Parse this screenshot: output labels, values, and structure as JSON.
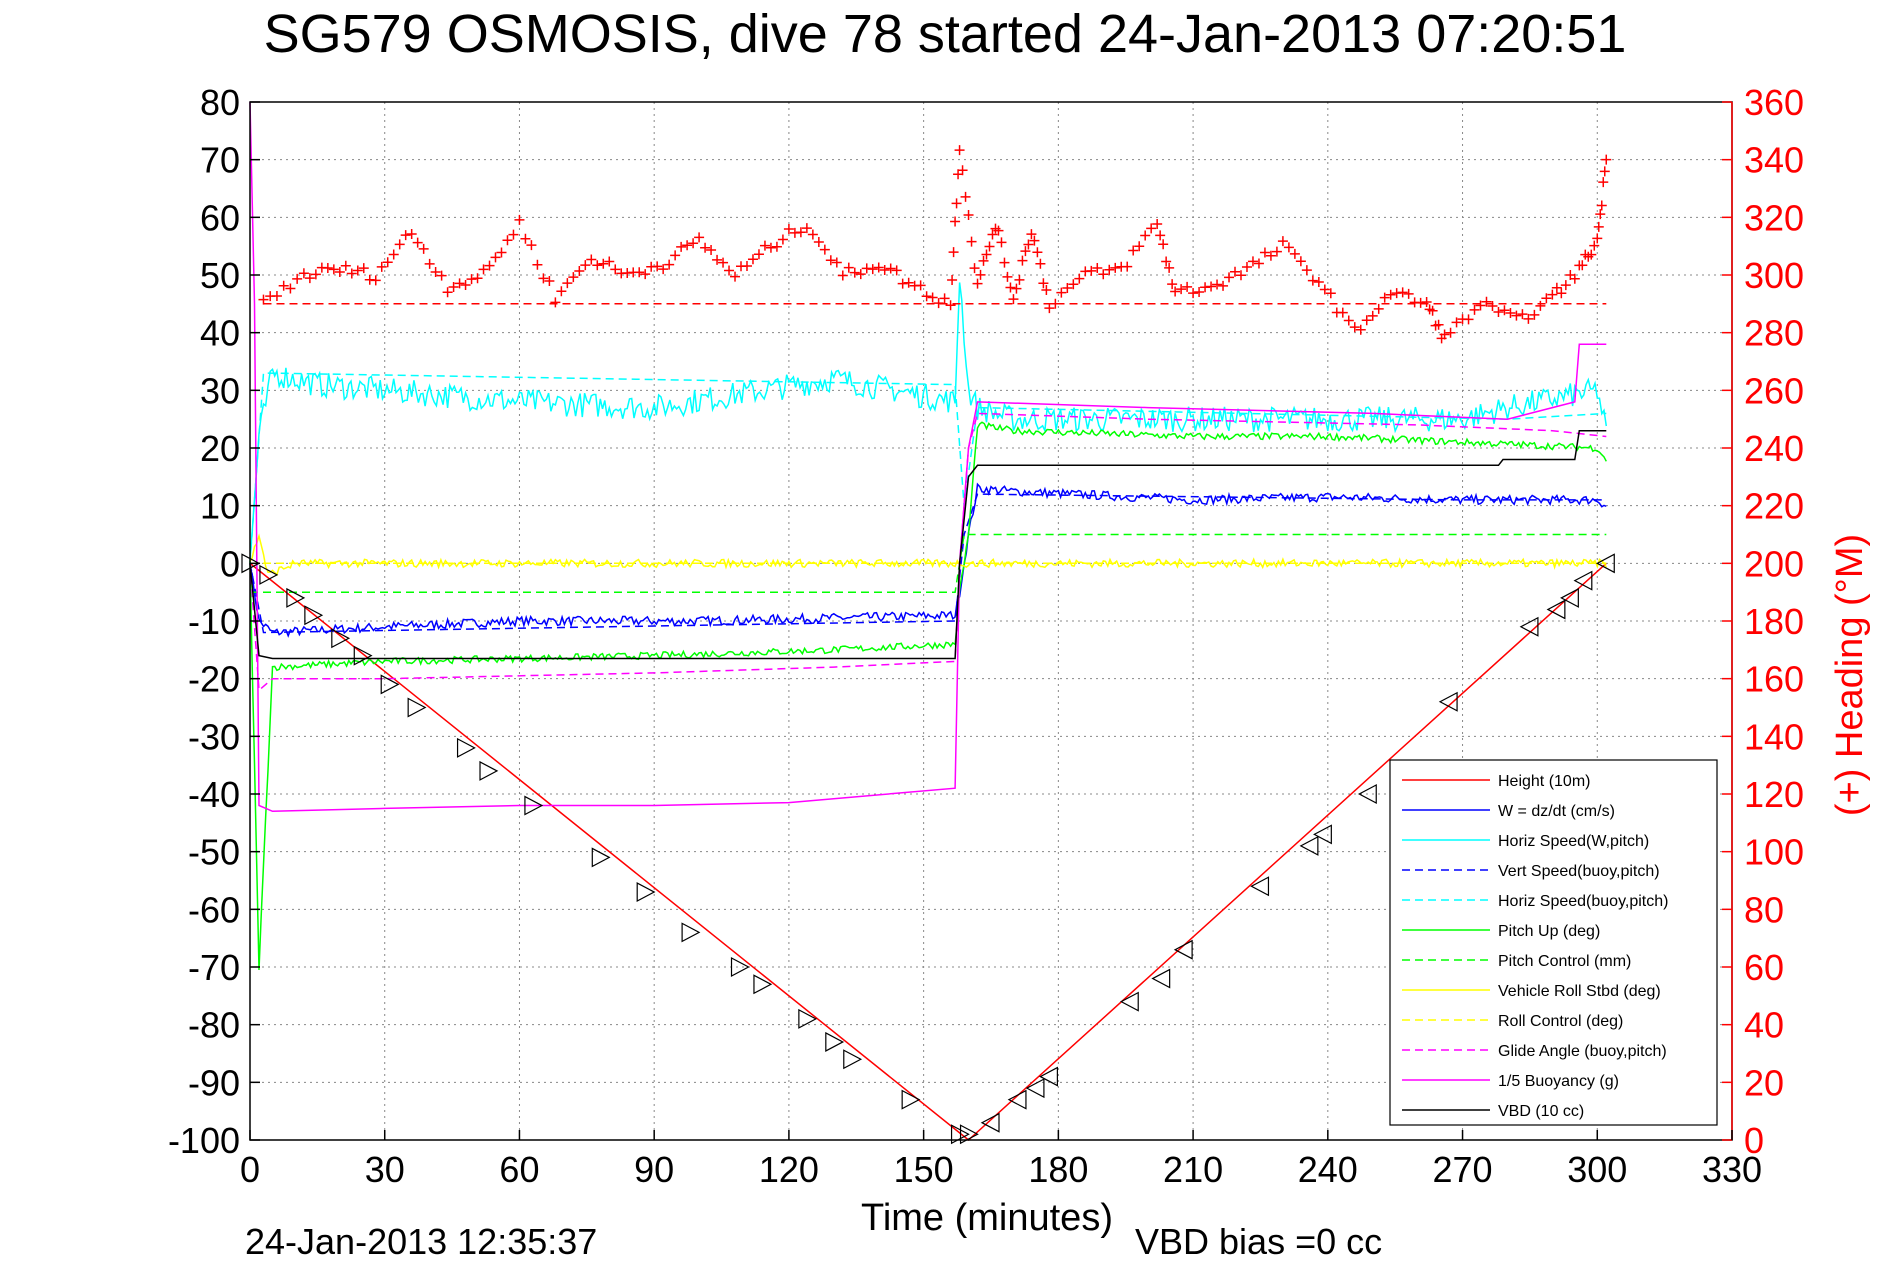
{
  "chart_data": {
    "type": "line",
    "title": "SG579 OSMOSIS, dive 78 started 24-Jan-2013 07:20:51",
    "xlabel": "Time (minutes)",
    "ylabel_right": "(+) Heading (°M)",
    "footer_left": "24-Jan-2013 12:35:37",
    "footer_right": "VBD bias =0 cc",
    "xlim": [
      0,
      330
    ],
    "ylim": [
      -100,
      80
    ],
    "ylim_right": [
      0,
      360
    ],
    "xticks": [
      0,
      30,
      60,
      90,
      120,
      150,
      180,
      210,
      240,
      270,
      300,
      330
    ],
    "yticks": [
      -100,
      -90,
      -80,
      -70,
      -60,
      -50,
      -40,
      -30,
      -20,
      -10,
      0,
      10,
      20,
      30,
      40,
      50,
      60,
      70,
      80
    ],
    "yticks_right": [
      0,
      20,
      40,
      60,
      80,
      100,
      120,
      140,
      160,
      180,
      200,
      220,
      240,
      260,
      280,
      300,
      320,
      340,
      360
    ],
    "grid": true,
    "legend_position": "bottom-right",
    "colors": {
      "red": "#ff0000",
      "blue": "#0000ff",
      "cyan": "#00ffff",
      "green": "#00ff00",
      "yellow": "#ffff00",
      "magenta": "#ff00ff",
      "black": "#000000"
    },
    "legend": [
      {
        "label": "Height (10m)",
        "color": "#ff0000",
        "dash": false
      },
      {
        "label": "W = dz/dt (cm/s)",
        "color": "#0000ff",
        "dash": false
      },
      {
        "label": "Horiz Speed(W,pitch)",
        "color": "#00ffff",
        "dash": false
      },
      {
        "label": "Vert Speed(buoy,pitch)",
        "color": "#0000ff",
        "dash": true
      },
      {
        "label": "Horiz Speed(buoy,pitch)",
        "color": "#00ffff",
        "dash": true
      },
      {
        "label": "Pitch Up (deg)",
        "color": "#00ff00",
        "dash": false
      },
      {
        "label": "Pitch Control (mm)",
        "color": "#00ff00",
        "dash": true
      },
      {
        "label": "Vehicle Roll Stbd (deg)",
        "color": "#ffff00",
        "dash": false
      },
      {
        "label": "Roll Control (deg)",
        "color": "#ffff00",
        "dash": true
      },
      {
        "label": "Glide Angle (buoy,pitch)",
        "color": "#ff00ff",
        "dash": true
      },
      {
        "label": "1/5 Buoyancy (g)",
        "color": "#ff00ff",
        "dash": false
      },
      {
        "label": "VBD (10 cc)",
        "color": "#000000",
        "dash": false
      }
    ],
    "series": [
      {
        "name": "Height (10m)",
        "color": "#ff0000",
        "dash": false,
        "x": [
          0,
          160,
          302
        ],
        "y": [
          0,
          -100,
          0
        ]
      },
      {
        "name": "W = dz/dt (cm/s)",
        "color": "#0000ff",
        "dash": false,
        "noise": 0.8,
        "x": [
          0,
          2,
          5,
          30,
          60,
          100,
          130,
          157,
          158,
          160,
          162,
          170,
          210,
          240,
          270,
          300,
          302
        ],
        "y": [
          0,
          -10,
          -12,
          -11,
          -10,
          -10,
          -9.5,
          -9,
          -5,
          5,
          13,
          12.5,
          11,
          11.5,
          11,
          11,
          10
        ]
      },
      {
        "name": "Horiz Speed(W,pitch)",
        "color": "#00ffff",
        "dash": false,
        "noise": 2.2,
        "x": [
          0,
          2,
          5,
          15,
          30,
          60,
          90,
          130,
          157,
          158,
          160,
          162,
          170,
          210,
          240,
          270,
          280,
          300,
          302
        ],
        "y": [
          0,
          22,
          33,
          31,
          30,
          28,
          27,
          32,
          28,
          50,
          30,
          27,
          25,
          25,
          25,
          25,
          27,
          30,
          23
        ]
      },
      {
        "name": "Vert Speed(buoy,pitch)",
        "color": "#0000ff",
        "dash": true,
        "x": [
          0,
          3,
          157,
          159,
          162,
          270,
          302
        ],
        "y": [
          0,
          -12,
          -10,
          5,
          12,
          11,
          11
        ]
      },
      {
        "name": "Horiz Speed(buoy,pitch)",
        "color": "#00ffff",
        "dash": true,
        "x": [
          0,
          3,
          157,
          159,
          162,
          280,
          302
        ],
        "y": [
          0,
          33,
          31,
          10,
          27,
          25,
          26
        ]
      },
      {
        "name": "Pitch Up (deg)",
        "color": "#00ff00",
        "dash": false,
        "noise": 0.6,
        "x": [
          0,
          2,
          5,
          30,
          90,
          130,
          157,
          158,
          160,
          162,
          170,
          210,
          240,
          270,
          300,
          302
        ],
        "y": [
          0,
          -70,
          -18,
          -17,
          -16,
          -15,
          -14,
          -5,
          5,
          24,
          23,
          22,
          22,
          21,
          20,
          18
        ]
      },
      {
        "name": "Pitch Control (mm)",
        "color": "#00ff00",
        "dash": true,
        "x": [
          0,
          3,
          157,
          159,
          302
        ],
        "y": [
          -5,
          -5,
          -5,
          5,
          5
        ]
      },
      {
        "name": "Vehicle Roll Stbd (deg)",
        "color": "#ffff00",
        "dash": false,
        "noise": 0.7,
        "x": [
          0,
          2,
          4,
          10,
          30,
          60,
          90,
          120,
          157,
          158,
          160,
          162,
          170,
          210,
          240,
          270,
          290,
          300,
          302
        ],
        "y": [
          0,
          5,
          -2,
          0,
          0,
          0,
          0,
          0,
          0,
          0,
          0,
          0,
          0,
          0,
          0,
          0,
          0,
          0,
          0
        ]
      },
      {
        "name": "Roll Control (deg)",
        "color": "#ffff00",
        "dash": true,
        "x": [
          0,
          3,
          157,
          159,
          302
        ],
        "y": [
          0,
          0,
          0,
          0,
          0
        ]
      },
      {
        "name": "Glide Angle (buoy,pitch)",
        "color": "#ff00ff",
        "dash": true,
        "x": [
          0,
          2,
          5,
          30,
          90,
          130,
          157,
          158,
          160,
          162,
          200,
          260,
          290,
          302
        ],
        "y": [
          0,
          -22,
          -20,
          -20,
          -19,
          -18,
          -17,
          0,
          20,
          26,
          25,
          24,
          23,
          22
        ]
      },
      {
        "name": "1/5 Buoyancy (g)",
        "color": "#ff00ff",
        "dash": false,
        "x": [
          0,
          1,
          2,
          5,
          30,
          60,
          90,
          120,
          157,
          158,
          160,
          162,
          200,
          250,
          280,
          295,
          296,
          302
        ],
        "y": [
          80,
          45,
          -42,
          -43,
          -42.5,
          -42,
          -42,
          -41.5,
          -39,
          0,
          20,
          28,
          27,
          26,
          25,
          28,
          38,
          38
        ]
      },
      {
        "name": "VBD (10 cc)",
        "color": "#000000",
        "dash": false,
        "x": [
          0,
          2,
          5,
          157,
          158,
          160,
          162,
          278,
          279,
          295,
          296,
          302
        ],
        "y": [
          0,
          -16,
          -16.5,
          -16.5,
          0,
          15,
          17,
          17,
          18,
          18,
          23,
          23
        ]
      },
      {
        "name": "Heading reference",
        "color": "#ff0000",
        "dash": true,
        "x": [
          3,
          302
        ],
        "y": [
          45,
          45
        ]
      }
    ],
    "heading_markers": {
      "color": "#ff0000",
      "axis": "right",
      "x": [
        3,
        12,
        20,
        28,
        36,
        44,
        52,
        60,
        68,
        76,
        84,
        92,
        100,
        108,
        116,
        124,
        132,
        140,
        148,
        156,
        158,
        162,
        166,
        170,
        174,
        178,
        186,
        194,
        202,
        206,
        214,
        222,
        230,
        238,
        246,
        254,
        262,
        266,
        274,
        282,
        290,
        296,
        300,
        302
      ],
      "y": [
        290,
        300,
        302,
        300,
        315,
        296,
        300,
        318,
        292,
        306,
        300,
        304,
        312,
        300,
        310,
        318,
        300,
        304,
        296,
        290,
        345,
        296,
        318,
        292,
        316,
        290,
        300,
        302,
        318,
        294,
        296,
        302,
        310,
        298,
        280,
        294,
        290,
        278,
        290,
        284,
        292,
        302,
        312,
        340
      ]
    },
    "depth_markers": {
      "x": [
        0,
        4,
        10,
        14,
        20,
        25,
        31,
        37,
        48,
        53,
        63,
        78,
        88,
        98,
        109,
        114,
        124,
        130,
        134,
        147,
        158,
        160,
        165,
        171,
        175,
        178,
        196,
        203,
        208,
        225,
        236,
        239,
        249,
        267,
        285,
        291,
        294,
        297,
        302
      ],
      "y": [
        0,
        -2,
        -6,
        -9,
        -13,
        -16,
        -21,
        -25,
        -32,
        -36,
        -42,
        -51,
        -57,
        -64,
        -70,
        -73,
        -79,
        -83,
        -86,
        -93,
        -99,
        -99,
        -97,
        -93,
        -91,
        -89,
        -76,
        -72,
        -67,
        -56,
        -49,
        -47,
        -40,
        -24,
        -11,
        -8,
        -6,
        -3,
        0
      ]
    }
  }
}
